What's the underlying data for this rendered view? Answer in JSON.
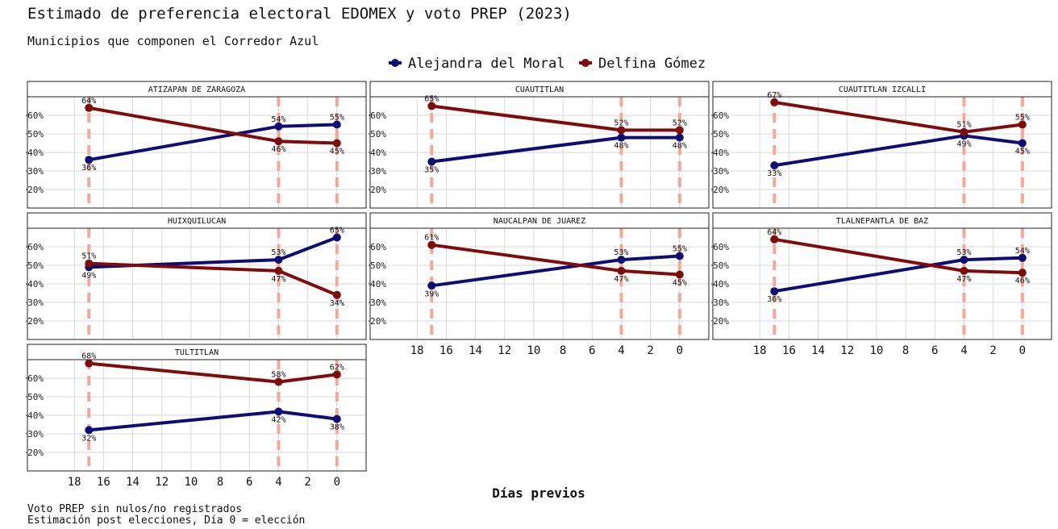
{
  "header": {
    "title": "Estimado de preferencia electoral EDOMEX y voto PREP (2023)",
    "subtitle": "Municipios que componen el Corredor Azul"
  },
  "legend": {
    "placement": "top-center",
    "items": [
      {
        "label": "Alejandra del Moral",
        "color": "#0d0d75"
      },
      {
        "label": "Delfina Gómez",
        "color": "#7f0b0b"
      }
    ]
  },
  "footer": {
    "xlabel": "Días previos",
    "caption_line1": "Voto PREP sin nulos/no registrados",
    "caption_line2": "Estimación post elecciones, Día 0 = elección"
  },
  "colors": {
    "moral": "#0d0d75",
    "gomez": "#7f0b0b",
    "vline": "#f4a89a",
    "grid": "#d9d9d9",
    "strip_bg": "#ffffff"
  },
  "chart_data": {
    "type": "line",
    "facet": "municipio",
    "x_reversed": true,
    "xlim": [
      20,
      -2
    ],
    "ylim": [
      10,
      70
    ],
    "x_ticks": [
      18,
      16,
      14,
      12,
      10,
      8,
      6,
      4,
      2,
      0
    ],
    "y_ticks": [
      20,
      30,
      40,
      50,
      60
    ],
    "y_tick_labels": [
      "20%",
      "30%",
      "40%",
      "50%",
      "60%"
    ],
    "vertical_lines_x": [
      17,
      4,
      0
    ],
    "grid": true,
    "x": [
      17,
      4,
      0
    ],
    "panels": [
      {
        "name": "ATIZAPAN DE ZARAGOZA",
        "series": [
          {
            "name": "Alejandra del Moral",
            "values": [
              36,
              54,
              55
            ],
            "labels": [
              "36%",
              "54%",
              "55%"
            ]
          },
          {
            "name": "Delfina Gómez",
            "values": [
              64,
              46,
              45
            ],
            "labels": [
              "64%",
              "46%",
              "45%"
            ]
          }
        ]
      },
      {
        "name": "CUAUTITLAN",
        "series": [
          {
            "name": "Alejandra del Moral",
            "values": [
              35,
              48,
              48
            ],
            "labels": [
              "35%",
              "48%",
              "48%"
            ]
          },
          {
            "name": "Delfina Gómez",
            "values": [
              65,
              52,
              52
            ],
            "labels": [
              "65%",
              "52%",
              "52%"
            ]
          }
        ]
      },
      {
        "name": "CUAUTITLAN IZCALLI",
        "series": [
          {
            "name": "Alejandra del Moral",
            "values": [
              33,
              49,
              45
            ],
            "labels": [
              "33%",
              "49%",
              "45%"
            ]
          },
          {
            "name": "Delfina Gómez",
            "values": [
              67,
              51,
              55
            ],
            "labels": [
              "67%",
              "51%",
              "55%"
            ]
          }
        ]
      },
      {
        "name": "HUIXQUILUCAN",
        "series": [
          {
            "name": "Alejandra del Moral",
            "values": [
              49,
              53,
              65
            ],
            "labels": [
              "49%",
              "53%",
              "65%"
            ]
          },
          {
            "name": "Delfina Gómez",
            "values": [
              51,
              47,
              34
            ],
            "labels": [
              "51%",
              "47%",
              "34%"
            ]
          }
        ]
      },
      {
        "name": "NAUCALPAN DE JUAREZ",
        "series": [
          {
            "name": "Alejandra del Moral",
            "values": [
              39,
              53,
              55
            ],
            "labels": [
              "39%",
              "53%",
              "55%"
            ]
          },
          {
            "name": "Delfina Gómez",
            "values": [
              61,
              47,
              45
            ],
            "labels": [
              "61%",
              "47%",
              "45%"
            ]
          }
        ]
      },
      {
        "name": "TLALNEPANTLA DE BAZ",
        "series": [
          {
            "name": "Alejandra del Moral",
            "values": [
              36,
              53,
              54
            ],
            "labels": [
              "36%",
              "53%",
              "54%"
            ]
          },
          {
            "name": "Delfina Gómez",
            "values": [
              64,
              47,
              46
            ],
            "labels": [
              "64%",
              "47%",
              "46%"
            ]
          }
        ]
      },
      {
        "name": "TULTITLAN",
        "series": [
          {
            "name": "Alejandra del Moral",
            "values": [
              32,
              42,
              38
            ],
            "labels": [
              "32%",
              "42%",
              "38%"
            ]
          },
          {
            "name": "Delfina Gómez",
            "values": [
              68,
              58,
              62
            ],
            "labels": [
              "68%",
              "58%",
              "62%"
            ]
          }
        ]
      }
    ]
  }
}
